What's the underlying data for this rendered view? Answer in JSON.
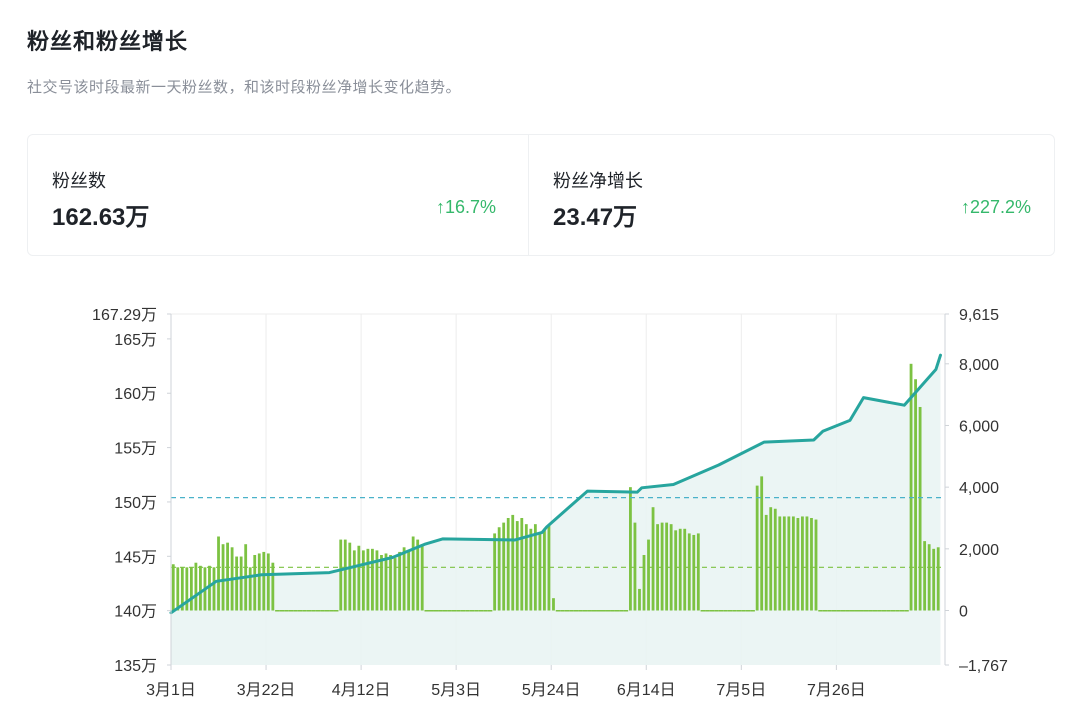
{
  "header": {
    "title": "粉丝和粉丝增长",
    "subtitle": "社交号该时段最新一天粉丝数，和该时段粉丝净增长变化趋势。"
  },
  "stats": {
    "followers": {
      "label": "粉丝数",
      "value": "162.63万",
      "change": "↑16.7%"
    },
    "net_growth": {
      "label": "粉丝净增长",
      "value": "23.47万",
      "change": "↑227.2%"
    }
  },
  "colors": {
    "line": "#27a59e",
    "bar": "#7cc242",
    "area": "#e7f3f2",
    "up": "#35b86b",
    "avg_line_dash": "#4ab2c9",
    "avg_bar_dash": "#7cc242"
  },
  "chart_data": {
    "type": "bar+line",
    "x_tick_labels": [
      "3月1日",
      "3月22日",
      "4月12日",
      "5月3日",
      "5月24日",
      "6月14日",
      "7月5日",
      "7月26日"
    ],
    "left_axis": {
      "tick_labels": [
        "167.29万",
        "165万",
        "160万",
        "155万",
        "150万",
        "145万",
        "140万",
        "135万"
      ],
      "range": [
        135,
        167.29
      ],
      "unit": "万"
    },
    "right_axis": {
      "tick_labels": [
        "9,615",
        "8,000",
        "6,000",
        "4,000",
        "2,000",
        "0",
        "–1,767"
      ],
      "range": [
        -1767,
        9615
      ]
    },
    "series": [
      {
        "type": "line",
        "axis": "left",
        "points": [
          [
            0,
            139.8
          ],
          [
            10,
            142.7
          ],
          [
            20,
            143.3
          ],
          [
            35,
            143.5
          ],
          [
            49,
            144.9
          ],
          [
            56,
            146.1
          ],
          [
            60,
            146.6
          ],
          [
            76,
            146.5
          ],
          [
            82,
            147.2
          ],
          [
            83,
            147.7
          ],
          [
            92,
            151
          ],
          [
            103,
            150.9
          ],
          [
            104,
            151.3
          ],
          [
            111,
            151.6
          ],
          [
            121,
            153.4
          ],
          [
            131,
            155.5
          ],
          [
            142,
            155.7
          ],
          [
            144,
            156.5
          ],
          [
            150,
            157.5
          ],
          [
            153,
            159.6
          ],
          [
            162,
            158.9
          ],
          [
            169,
            162.2
          ],
          [
            170,
            163.5
          ]
        ]
      },
      {
        "type": "bar",
        "axis": "right",
        "values": [
          1500,
          1400,
          1400,
          1400,
          1400,
          1550,
          1450,
          1400,
          1450,
          1400,
          2400,
          2150,
          2200,
          2050,
          1750,
          1750,
          2150,
          1400,
          1800,
          1850,
          1900,
          1850,
          1550,
          0,
          0,
          0,
          0,
          0,
          0,
          0,
          0,
          0,
          0,
          0,
          0,
          0,
          0,
          2300,
          2300,
          2200,
          1950,
          2100,
          1950,
          2000,
          2000,
          1950,
          1800,
          1850,
          1800,
          1700,
          1900,
          2050,
          1950,
          2400,
          2300,
          2150,
          0,
          0,
          0,
          0,
          0,
          0,
          0,
          0,
          0,
          0,
          0,
          0,
          0,
          0,
          0,
          2500,
          2700,
          2850,
          3000,
          3100,
          2900,
          3000,
          2800,
          2650,
          2800,
          2500,
          2650,
          2750,
          400,
          0,
          0,
          0,
          0,
          0,
          0,
          0,
          0,
          0,
          0,
          0,
          0,
          0,
          0,
          0,
          0,
          4000,
          2850,
          700,
          1800,
          2300,
          3350,
          2800,
          2850,
          2850,
          2800,
          2600,
          2650,
          2650,
          2500,
          2450,
          2500,
          0,
          0,
          0,
          0,
          0,
          0,
          0,
          0,
          0,
          0,
          0,
          0,
          4050,
          4350,
          3100,
          3350,
          3300,
          3050,
          3050,
          3050,
          3050,
          3000,
          3050,
          3050,
          3000,
          2950,
          0,
          0,
          0,
          0,
          0,
          0,
          0,
          0,
          0,
          0,
          0,
          0,
          0,
          0,
          0,
          0,
          0,
          0,
          0,
          0,
          8000,
          7500,
          6600,
          2250,
          2150,
          2000,
          2050
        ]
      }
    ],
    "reference_lines": [
      {
        "axis": "left",
        "value": 150.4,
        "style": "dashed",
        "color": "#4ab2c9"
      },
      {
        "axis": "right",
        "value": 1400,
        "style": "dashed",
        "color": "#7cc242"
      }
    ],
    "days": 171,
    "grid": true
  }
}
